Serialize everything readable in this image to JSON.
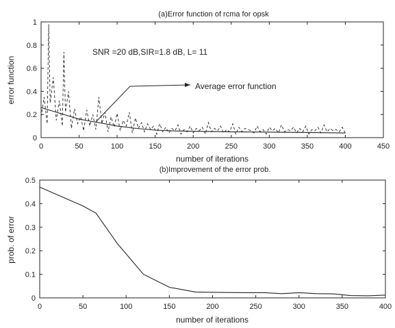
{
  "chart_data": [
    {
      "type": "line",
      "title": "(a)Error function of rcma for opsk",
      "xlabel": "number of iterations",
      "ylabel": "error function",
      "xlim": [
        0,
        450
      ],
      "ylim": [
        0,
        1
      ],
      "xticks": [
        "0",
        "50",
        "100",
        "150",
        "200",
        "250",
        "300",
        "350",
        "400",
        "450"
      ],
      "yticks": [
        "0",
        "0.2",
        "0.4",
        "0.6",
        "0.8",
        "1"
      ],
      "grid": false,
      "annotations": [
        "SNR =20 dB,SIR=1.8 dB, L= 11",
        "Average error function"
      ],
      "series": [
        {
          "style": "dashed",
          "x": [
            0,
            4,
            8,
            10,
            12,
            16,
            20,
            24,
            28,
            30,
            32,
            36,
            40,
            44,
            48,
            52,
            56,
            60,
            64,
            68,
            72,
            76,
            80,
            84,
            88,
            92,
            96,
            100,
            104,
            108,
            112,
            116,
            120,
            124,
            128,
            132,
            136,
            140,
            144,
            148,
            152,
            156,
            160,
            164,
            168,
            172,
            176,
            180,
            184,
            188,
            192,
            196,
            200,
            204,
            208,
            212,
            216,
            220,
            224,
            228,
            232,
            236,
            240,
            244,
            248,
            252,
            256,
            260,
            264,
            268,
            272,
            276,
            280,
            284,
            288,
            292,
            296,
            300,
            304,
            308,
            312,
            316,
            320,
            324,
            328,
            332,
            336,
            340,
            344,
            348,
            352,
            356,
            360,
            364,
            368,
            372,
            376,
            380,
            384,
            388,
            392,
            396,
            400
          ],
          "y": [
            0.18,
            0.35,
            0.12,
            0.98,
            0.3,
            0.52,
            0.15,
            0.32,
            0.1,
            0.74,
            0.22,
            0.4,
            0.08,
            0.25,
            0.12,
            0.18,
            0.06,
            0.24,
            0.1,
            0.2,
            0.07,
            0.35,
            0.12,
            0.22,
            0.05,
            0.18,
            0.09,
            0.21,
            0.06,
            0.15,
            0.1,
            0.22,
            0.04,
            0.17,
            0.08,
            0.13,
            0.05,
            0.12,
            0.07,
            0.1,
            0.03,
            0.12,
            0.05,
            0.09,
            0.04,
            0.08,
            0.06,
            0.11,
            0.03,
            0.07,
            0.05,
            0.1,
            0.04,
            0.08,
            0.06,
            0.09,
            0.03,
            0.13,
            0.05,
            0.08,
            0.06,
            0.1,
            0.04,
            0.07,
            0.05,
            0.12,
            0.03,
            0.09,
            0.05,
            0.08,
            0.07,
            0.06,
            0.04,
            0.1,
            0.05,
            0.07,
            0.03,
            0.09,
            0.06,
            0.08,
            0.04,
            0.11,
            0.05,
            0.07,
            0.06,
            0.09,
            0.04,
            0.08,
            0.05,
            0.1,
            0.03,
            0.07,
            0.06,
            0.09,
            0.04,
            0.11,
            0.05,
            0.08,
            0.06,
            0.07,
            0.05,
            0.09,
            0.04
          ]
        },
        {
          "name": "Average error function",
          "style": "solid",
          "x": [
            0,
            25,
            50,
            75,
            100,
            125,
            150,
            175,
            200,
            250,
            300,
            350,
            400
          ],
          "y": [
            0.26,
            0.21,
            0.16,
            0.13,
            0.1,
            0.08,
            0.065,
            0.058,
            0.055,
            0.05,
            0.048,
            0.045,
            0.04
          ]
        }
      ]
    },
    {
      "type": "line",
      "title": "(b)Improvement of the error prob.",
      "xlabel": "number of iterations",
      "ylabel": "prob. of error",
      "xlim": [
        0,
        400
      ],
      "ylim": [
        0,
        0.5
      ],
      "xticks": [
        "0",
        "50",
        "100",
        "150",
        "200",
        "250",
        "300",
        "350",
        "400"
      ],
      "yticks": [
        "0",
        "0.1",
        "0.2",
        "0.3",
        "0.4",
        "0.5"
      ],
      "grid": false,
      "series": [
        {
          "style": "solid",
          "x": [
            0,
            50,
            65,
            90,
            120,
            150,
            180,
            210,
            240,
            260,
            280,
            300,
            320,
            340,
            360,
            380,
            400
          ],
          "y": [
            0.47,
            0.39,
            0.36,
            0.23,
            0.1,
            0.045,
            0.025,
            0.023,
            0.022,
            0.022,
            0.018,
            0.022,
            0.018,
            0.017,
            0.01,
            0.009,
            0.012
          ]
        }
      ]
    }
  ]
}
